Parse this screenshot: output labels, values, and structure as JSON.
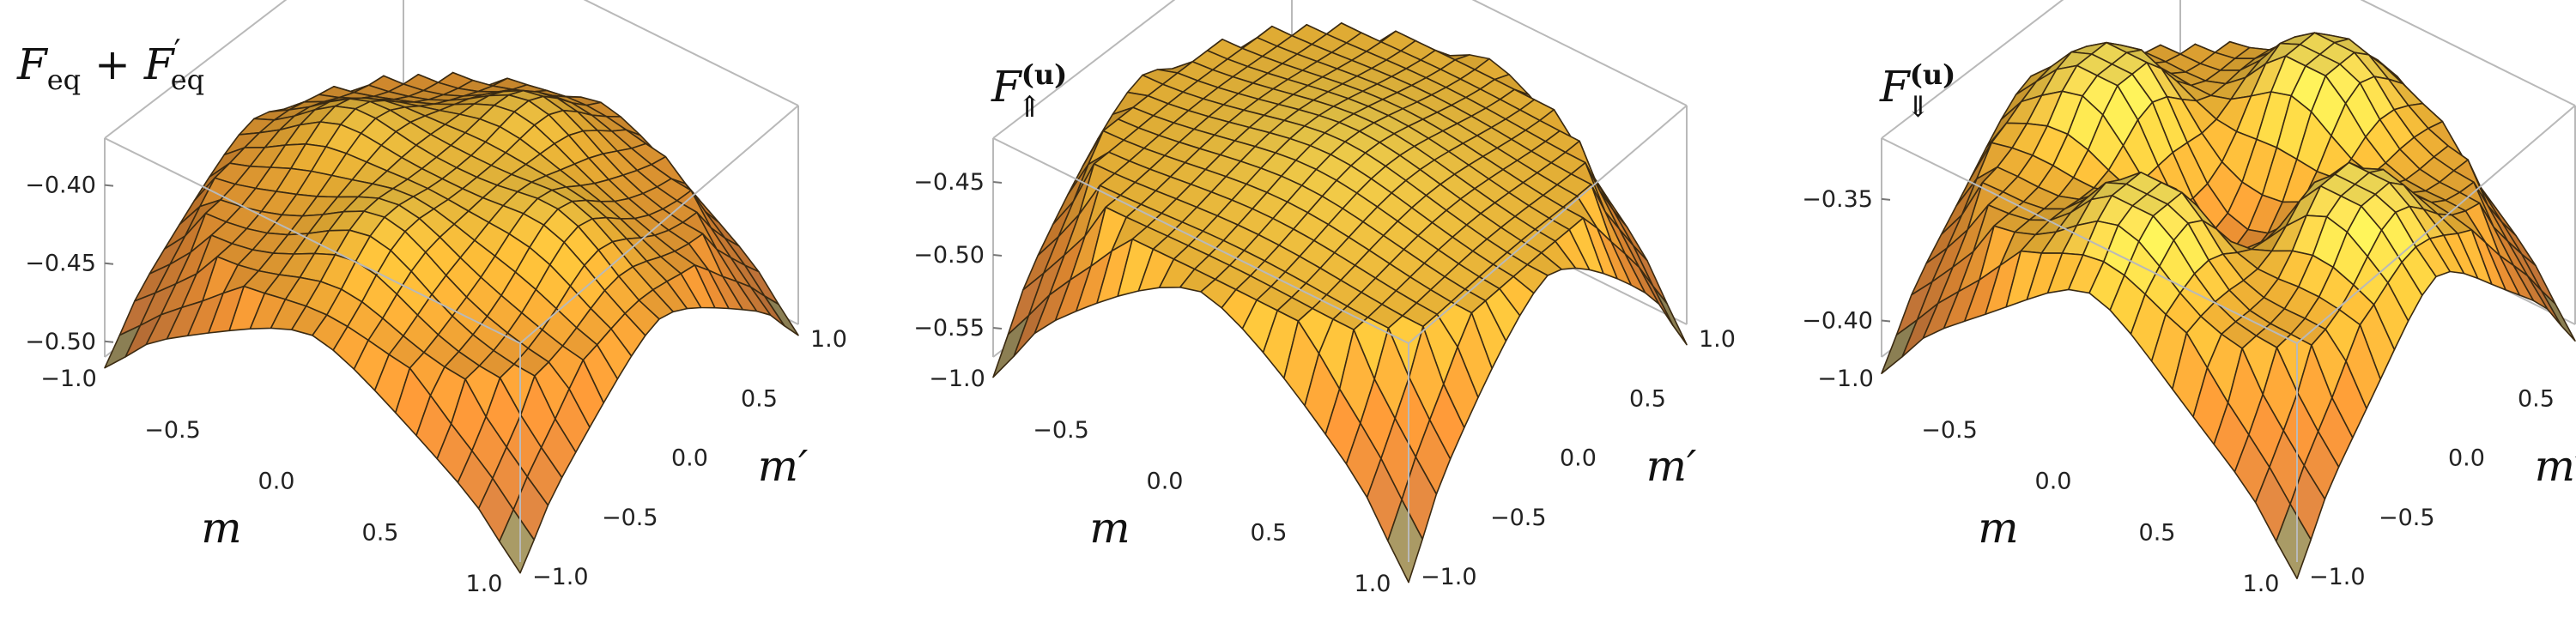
{
  "chart_data": [
    {
      "type": "surface3d",
      "title": "F_eq + F'_eq",
      "title_parts": {
        "base": "F",
        "sub": "eq",
        "base2": "F",
        "prime": "′",
        "sub2": "eq",
        "op": "+"
      },
      "xlabel": "m",
      "ylabel": "m′",
      "xlim": [
        -1.0,
        1.0
      ],
      "ylim": [
        -1.0,
        1.0
      ],
      "zlim": [
        -0.51,
        -0.37
      ],
      "x_ticks": [
        "−1.0",
        "−0.5",
        "0.0",
        "0.5",
        "1.0"
      ],
      "y_ticks": [
        "−1.0",
        "−0.5",
        "0.0",
        "0.5",
        "1.0"
      ],
      "z_ticks": [
        {
          "value": -0.4,
          "label": "−0.40"
        },
        {
          "value": -0.45,
          "label": "−0.45"
        },
        {
          "value": -0.5,
          "label": "−0.50"
        }
      ],
      "surface": {
        "corner_value": -0.505,
        "edge_mid_value": -0.435,
        "center_value": -0.405,
        "peak_value": -0.372,
        "peak_locations": [
          [
            -0.55,
            0.0
          ],
          [
            0.55,
            0.0
          ],
          [
            0.0,
            -0.55
          ],
          [
            0.0,
            0.55
          ]
        ]
      },
      "grid_lines": 21,
      "colormap": "orange-yellow"
    },
    {
      "type": "surface3d",
      "title": "F_⇑^(u)",
      "title_parts": {
        "base": "F",
        "sub": "⇑",
        "sup": "(u)"
      },
      "xlabel": "m",
      "ylabel": "m′",
      "xlim": [
        -1.0,
        1.0
      ],
      "ylim": [
        -1.0,
        1.0
      ],
      "zlim": [
        -0.57,
        -0.42
      ],
      "x_ticks": [
        "−1.0",
        "−0.5",
        "0.0",
        "0.5",
        "1.0"
      ],
      "y_ticks": [
        "−1.0",
        "−0.5",
        "0.0",
        "0.5",
        "1.0"
      ],
      "z_ticks": [
        {
          "value": -0.45,
          "label": "−0.45"
        },
        {
          "value": -0.5,
          "label": "−0.50"
        },
        {
          "value": -0.55,
          "label": "−0.55"
        }
      ],
      "surface": {
        "corner_value": -0.565,
        "edge_mid_value": -0.455,
        "center_value": -0.435,
        "peak_value": -0.43,
        "peak_locations": [
          [
            0.0,
            0.0
          ]
        ]
      },
      "grid_lines": 21,
      "colormap": "orange-yellow"
    },
    {
      "type": "surface3d",
      "title": "F_⇓^(u)",
      "title_parts": {
        "base": "F",
        "sub": "⇓",
        "sup": "(u)"
      },
      "xlabel": "m",
      "ylabel": "m′",
      "xlim": [
        -1.0,
        1.0
      ],
      "ylim": [
        -1.0,
        1.0
      ],
      "zlim": [
        -0.415,
        -0.325
      ],
      "x_ticks": [
        "−1.0",
        "−0.5",
        "0.0",
        "0.5",
        "1.0"
      ],
      "y_ticks": [
        "−1.0",
        "−0.5",
        "0.0",
        "0.5",
        "1.0"
      ],
      "z_ticks": [
        {
          "value": -0.35,
          "label": "−0.35"
        },
        {
          "value": -0.4,
          "label": "−0.40"
        }
      ],
      "surface": {
        "corner_value": -0.412,
        "edge_mid_value": -0.355,
        "center_value": -0.39,
        "peak_value": -0.327,
        "peak_locations": [
          [
            -0.55,
            0.0
          ],
          [
            0.55,
            0.0
          ],
          [
            0.0,
            -0.55
          ],
          [
            0.0,
            0.55
          ]
        ]
      },
      "grid_lines": 21,
      "colormap": "orange-yellow"
    }
  ]
}
